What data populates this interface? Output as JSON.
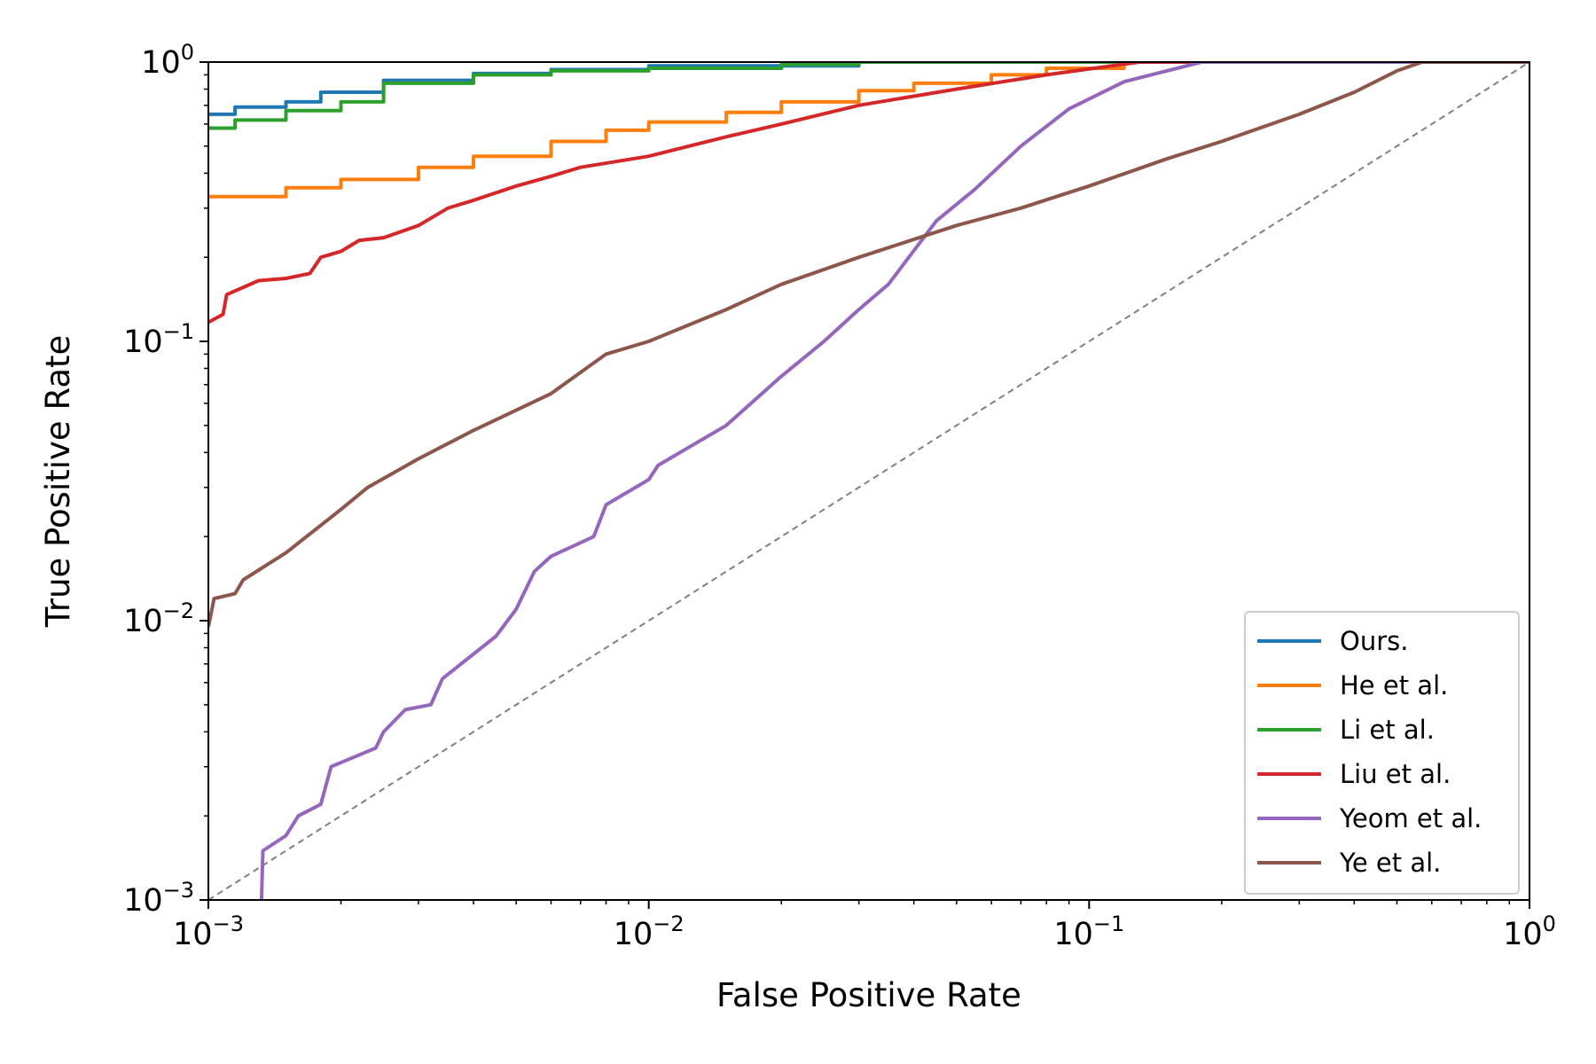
{
  "chart_data": {
    "type": "line",
    "xlabel": "False Positive Rate",
    "ylabel": "True Positive Rate",
    "xscale": "log",
    "yscale": "log",
    "xlim": [
      0.001,
      1
    ],
    "ylim": [
      0.001,
      1
    ],
    "major_ticks": [
      {
        "value": 0.001,
        "base": "10",
        "exp": "−3"
      },
      {
        "value": 0.01,
        "base": "10",
        "exp": "−2"
      },
      {
        "value": 0.1,
        "base": "10",
        "exp": "−1"
      },
      {
        "value": 1,
        "base": "10",
        "exp": "0"
      }
    ],
    "grid": false,
    "legend_position": "lower-right",
    "reference_line": {
      "style": "dashed",
      "color": "#808080",
      "points": [
        [
          0.001,
          0.001
        ],
        [
          1,
          1
        ]
      ]
    },
    "series": [
      {
        "name": "Ours.",
        "color": "#1f77b4",
        "step": true,
        "points": [
          [
            0.001,
            0.65
          ],
          [
            0.00115,
            0.69
          ],
          [
            0.0015,
            0.72
          ],
          [
            0.0018,
            0.78
          ],
          [
            0.0025,
            0.86
          ],
          [
            0.004,
            0.91
          ],
          [
            0.006,
            0.94
          ],
          [
            0.01,
            0.97
          ],
          [
            0.03,
            1.0
          ],
          [
            1,
            1.0
          ]
        ]
      },
      {
        "name": "He et al.",
        "color": "#ff7f0e",
        "step": true,
        "points": [
          [
            0.001,
            0.33
          ],
          [
            0.0015,
            0.355
          ],
          [
            0.002,
            0.38
          ],
          [
            0.003,
            0.42
          ],
          [
            0.004,
            0.46
          ],
          [
            0.006,
            0.52
          ],
          [
            0.008,
            0.57
          ],
          [
            0.01,
            0.61
          ],
          [
            0.015,
            0.66
          ],
          [
            0.02,
            0.72
          ],
          [
            0.03,
            0.79
          ],
          [
            0.04,
            0.84
          ],
          [
            0.06,
            0.9
          ],
          [
            0.08,
            0.95
          ],
          [
            0.12,
            1.0
          ],
          [
            1,
            1.0
          ]
        ]
      },
      {
        "name": "Li et al.",
        "color": "#2ca02c",
        "step": true,
        "points": [
          [
            0.001,
            0.58
          ],
          [
            0.00115,
            0.62
          ],
          [
            0.0015,
            0.67
          ],
          [
            0.002,
            0.72
          ],
          [
            0.0025,
            0.84
          ],
          [
            0.004,
            0.9
          ],
          [
            0.006,
            0.93
          ],
          [
            0.01,
            0.95
          ],
          [
            0.02,
            0.98
          ],
          [
            0.03,
            1.0
          ],
          [
            1,
            1.0
          ]
        ]
      },
      {
        "name": "Liu et al.",
        "color": "#d62728",
        "step": false,
        "points": [
          [
            0.001,
            0.117
          ],
          [
            0.00108,
            0.125
          ],
          [
            0.0011,
            0.147
          ],
          [
            0.0013,
            0.165
          ],
          [
            0.0015,
            0.168
          ],
          [
            0.0017,
            0.175
          ],
          [
            0.0018,
            0.2
          ],
          [
            0.002,
            0.21
          ],
          [
            0.0022,
            0.23
          ],
          [
            0.0025,
            0.235
          ],
          [
            0.003,
            0.26
          ],
          [
            0.0035,
            0.3
          ],
          [
            0.004,
            0.32
          ],
          [
            0.005,
            0.36
          ],
          [
            0.006,
            0.39
          ],
          [
            0.007,
            0.42
          ],
          [
            0.01,
            0.46
          ],
          [
            0.015,
            0.54
          ],
          [
            0.02,
            0.6
          ],
          [
            0.03,
            0.7
          ],
          [
            0.05,
            0.8
          ],
          [
            0.08,
            0.9
          ],
          [
            0.13,
            1.0
          ],
          [
            1,
            1.0
          ]
        ]
      },
      {
        "name": "Yeom et al.",
        "color": "#9467bd",
        "step": false,
        "points": [
          [
            0.00132,
            0.001
          ],
          [
            0.00133,
            0.0015
          ],
          [
            0.0015,
            0.0017
          ],
          [
            0.0016,
            0.002
          ],
          [
            0.0018,
            0.0022
          ],
          [
            0.0019,
            0.003
          ],
          [
            0.0024,
            0.0035
          ],
          [
            0.0025,
            0.004
          ],
          [
            0.0028,
            0.0048
          ],
          [
            0.0032,
            0.005
          ],
          [
            0.0034,
            0.0062
          ],
          [
            0.0045,
            0.0088
          ],
          [
            0.005,
            0.011
          ],
          [
            0.0055,
            0.015
          ],
          [
            0.006,
            0.017
          ],
          [
            0.0075,
            0.02
          ],
          [
            0.008,
            0.026
          ],
          [
            0.01,
            0.032
          ],
          [
            0.0105,
            0.036
          ],
          [
            0.015,
            0.05
          ],
          [
            0.02,
            0.075
          ],
          [
            0.025,
            0.1
          ],
          [
            0.03,
            0.13
          ],
          [
            0.035,
            0.16
          ],
          [
            0.045,
            0.27
          ],
          [
            0.055,
            0.35
          ],
          [
            0.07,
            0.5
          ],
          [
            0.09,
            0.68
          ],
          [
            0.12,
            0.85
          ],
          [
            0.18,
            1.0
          ],
          [
            1,
            1.0
          ]
        ]
      },
      {
        "name": "Ye et al.",
        "color": "#8c564b",
        "step": false,
        "points": [
          [
            0.001,
            0.0095
          ],
          [
            0.00103,
            0.012
          ],
          [
            0.00115,
            0.0125
          ],
          [
            0.0012,
            0.014
          ],
          [
            0.0015,
            0.0175
          ],
          [
            0.002,
            0.025
          ],
          [
            0.0023,
            0.03
          ],
          [
            0.003,
            0.038
          ],
          [
            0.004,
            0.048
          ],
          [
            0.006,
            0.065
          ],
          [
            0.008,
            0.09
          ],
          [
            0.01,
            0.1
          ],
          [
            0.015,
            0.13
          ],
          [
            0.02,
            0.16
          ],
          [
            0.03,
            0.2
          ],
          [
            0.05,
            0.26
          ],
          [
            0.07,
            0.3
          ],
          [
            0.1,
            0.36
          ],
          [
            0.15,
            0.45
          ],
          [
            0.2,
            0.52
          ],
          [
            0.3,
            0.65
          ],
          [
            0.4,
            0.78
          ],
          [
            0.5,
            0.93
          ],
          [
            0.57,
            1.0
          ],
          [
            1,
            1.0
          ]
        ]
      }
    ]
  }
}
